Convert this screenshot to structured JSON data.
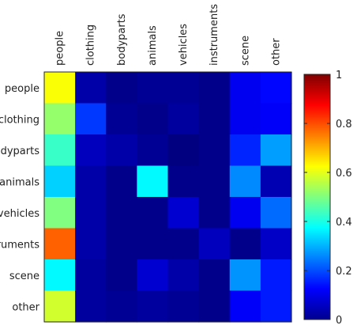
{
  "chart_data": {
    "type": "heatmap",
    "title": "",
    "xlabel": "",
    "ylabel": "",
    "x_categories": [
      "people",
      "clothing",
      "bodyparts",
      "animals",
      "vehicles",
      "instruments",
      "scene",
      "other"
    ],
    "y_categories": [
      "people",
      "clothing",
      "bodyparts",
      "animals",
      "vehicles",
      "instruments",
      "scene",
      "other"
    ],
    "values": [
      [
        0.62,
        0.04,
        0.01,
        0.02,
        0.02,
        0.01,
        0.11,
        0.13
      ],
      [
        0.52,
        0.18,
        0.02,
        0.01,
        0.03,
        0.01,
        0.11,
        0.12
      ],
      [
        0.43,
        0.06,
        0.04,
        0.02,
        0.0,
        0.01,
        0.16,
        0.28
      ],
      [
        0.33,
        0.04,
        0.01,
        0.37,
        0.01,
        0.01,
        0.26,
        0.05
      ],
      [
        0.5,
        0.04,
        0.01,
        0.01,
        0.08,
        0.01,
        0.11,
        0.23
      ],
      [
        0.78,
        0.04,
        0.01,
        0.01,
        0.01,
        0.06,
        0.01,
        0.07
      ],
      [
        0.37,
        0.03,
        0.01,
        0.08,
        0.04,
        0.01,
        0.27,
        0.15
      ],
      [
        0.58,
        0.03,
        0.02,
        0.03,
        0.02,
        0.01,
        0.12,
        0.15
      ]
    ],
    "colormap": "jet",
    "color_range": [
      0,
      1
    ],
    "colorbar_ticks": [
      "0",
      "0.2",
      "0.4",
      "0.6",
      "0.8",
      "1"
    ],
    "colorbar_tick_values": [
      0,
      0.2,
      0.4,
      0.6,
      0.8,
      1
    ],
    "colorbar_placement": "right",
    "grid": false
  }
}
